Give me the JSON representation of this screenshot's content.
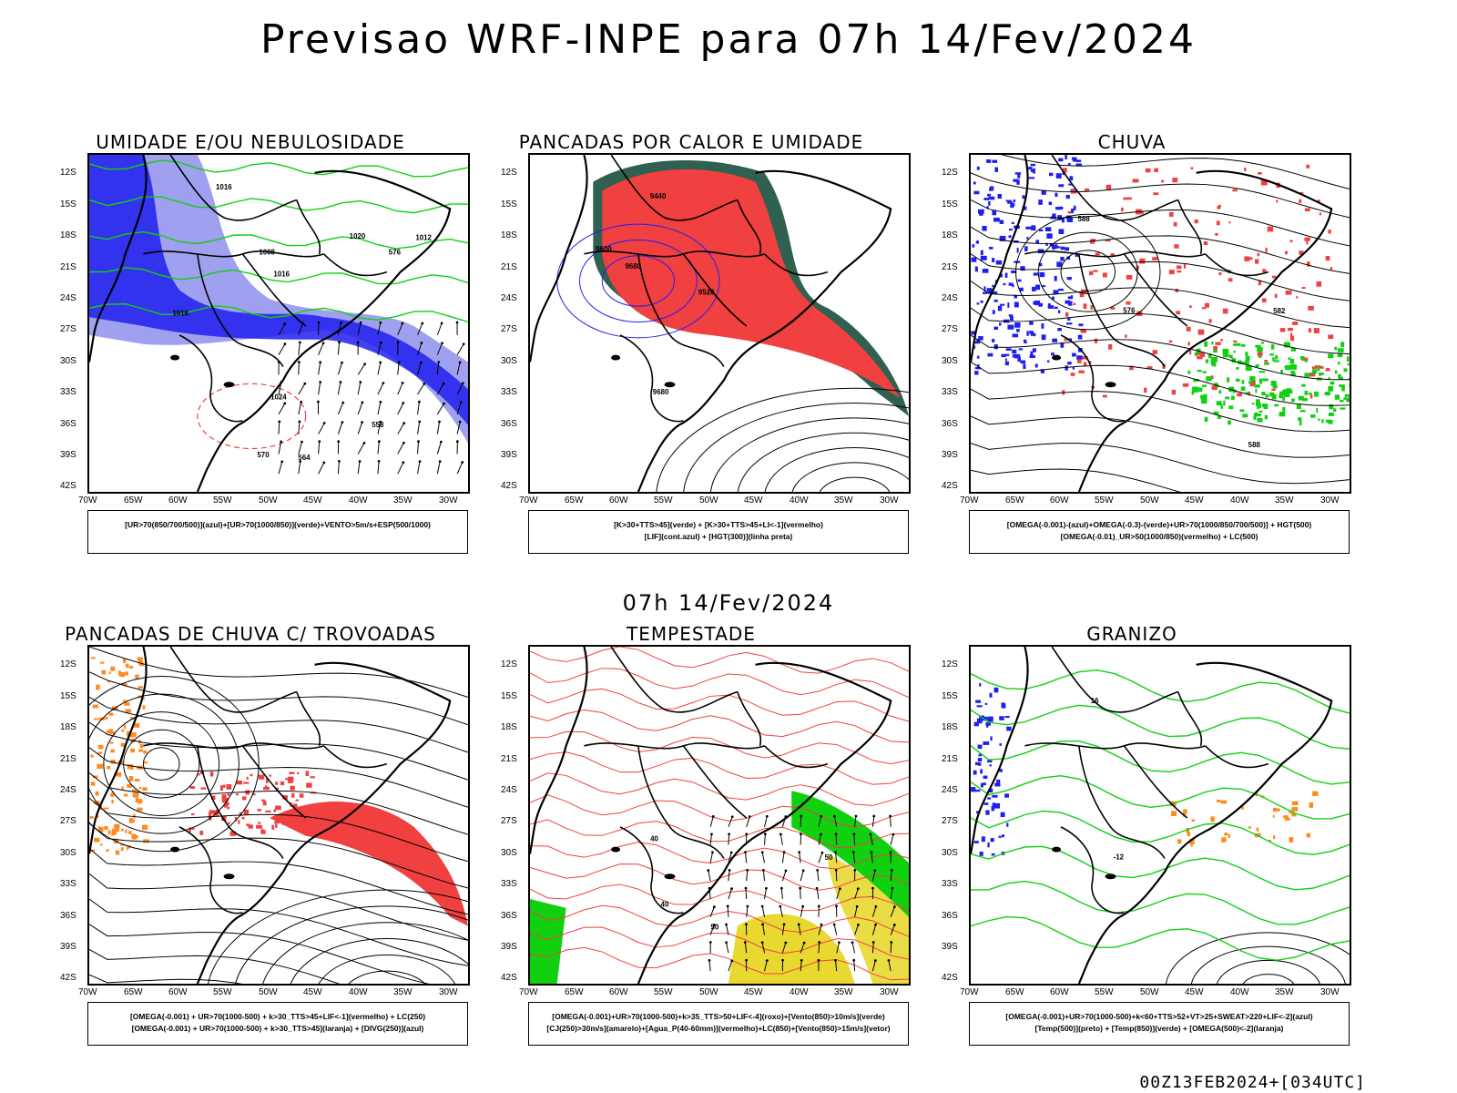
{
  "main_title": "Previsao WRF-INPE  para 07h 14/Fev/2024",
  "mid_title": "07h 14/Fev/2024",
  "footer_stamp": "00Z13FEB2024+[034UTC]",
  "y_ticks": [
    "12S",
    "15S",
    "18S",
    "21S",
    "24S",
    "27S",
    "30S",
    "33S",
    "36S",
    "39S",
    "42S"
  ],
  "x_ticks": [
    "70W",
    "65W",
    "60W",
    "55W",
    "50W",
    "45W",
    "40W",
    "35W",
    "30W"
  ],
  "colors": {
    "red": "#f04040",
    "blue": "#2020ee",
    "green": "#10d010",
    "lightblue": "#a0a0f0",
    "darkgreen": "#2f6050",
    "yellow": "#e8d830",
    "orange": "#ff8a20"
  },
  "panels": [
    {
      "title": "UMIDADE E/OU NEBULOSIDADE",
      "legend": [
        "[UR>70(850/700/500)](azul)+[UR>70(1000/850)](verde)+VENTO>5m/s+ESP(500/1000)"
      ],
      "contour_labels": [
        "1016",
        "1016",
        "1016",
        "1020",
        "1024",
        "1012",
        "1008",
        "576",
        "570",
        "564",
        "558"
      ]
    },
    {
      "title": "PANCADAS POR CALOR E UMIDADE",
      "legend": [
        "[K>30+TTS>45](verde) + [K>30+TTS>45+LI<-1](vermelho)",
        "[LIF](cont.azul) + [HGT(300)](linha preta)"
      ],
      "contour_labels": [
        "9680",
        "9600",
        "9520",
        "9440",
        "9680"
      ]
    },
    {
      "title": "CHUVA",
      "legend": [
        "[OMEGA(-0.001)-(azul)+OMEGA(-0.3)-(verde)+UR>70(1000/850/700/500)] + HGT(500)",
        "[OMEGA(-0.01)_UR>50(1000/850)(vermelho) + LC(500)"
      ],
      "contour_labels": [
        "588",
        "582",
        "576",
        "588"
      ]
    },
    {
      "title": "PANCADAS DE CHUVA C/ TROVOADAS",
      "legend": [
        "[OMEGA(-0.001) + UR>70(1000-500) + k>30_TTS>45+LIF<-1](vermelho) + LC(250)",
        "[OMEGA(-0.001) + UR>70(1000-500) + k>30_TTS>45](laranja) + [DIVG(250)](azul)"
      ],
      "contour_labels": []
    },
    {
      "title": "TEMPESTADE",
      "legend": [
        "[OMEGA(-0.001)+UR>70(1000-500)+k>35_TTS>50+LIF<-4](roxo)+[Vento(850)>10m/s](verde)",
        "[CJ(250)>30m/s](amarelo)+[Agua_P(40-60mm)](vermelho)+LC(850)+[Vento(850)>15m/s](vetor)"
      ],
      "contour_labels": [
        "40",
        "50",
        "40",
        "50"
      ]
    },
    {
      "title": "GRANIZO",
      "legend": [
        "[OMEGA(-0.001)+UR>70(1000-500)+k<60+TTS>52+VT>25+SWEAT>220+LIF<-2](azul)",
        "[Temp(500)](preto) + [Temp(850)](verde) + [OMEGA(500)<-2](laranja)"
      ],
      "contour_labels": [
        "-12",
        "16"
      ]
    }
  ]
}
